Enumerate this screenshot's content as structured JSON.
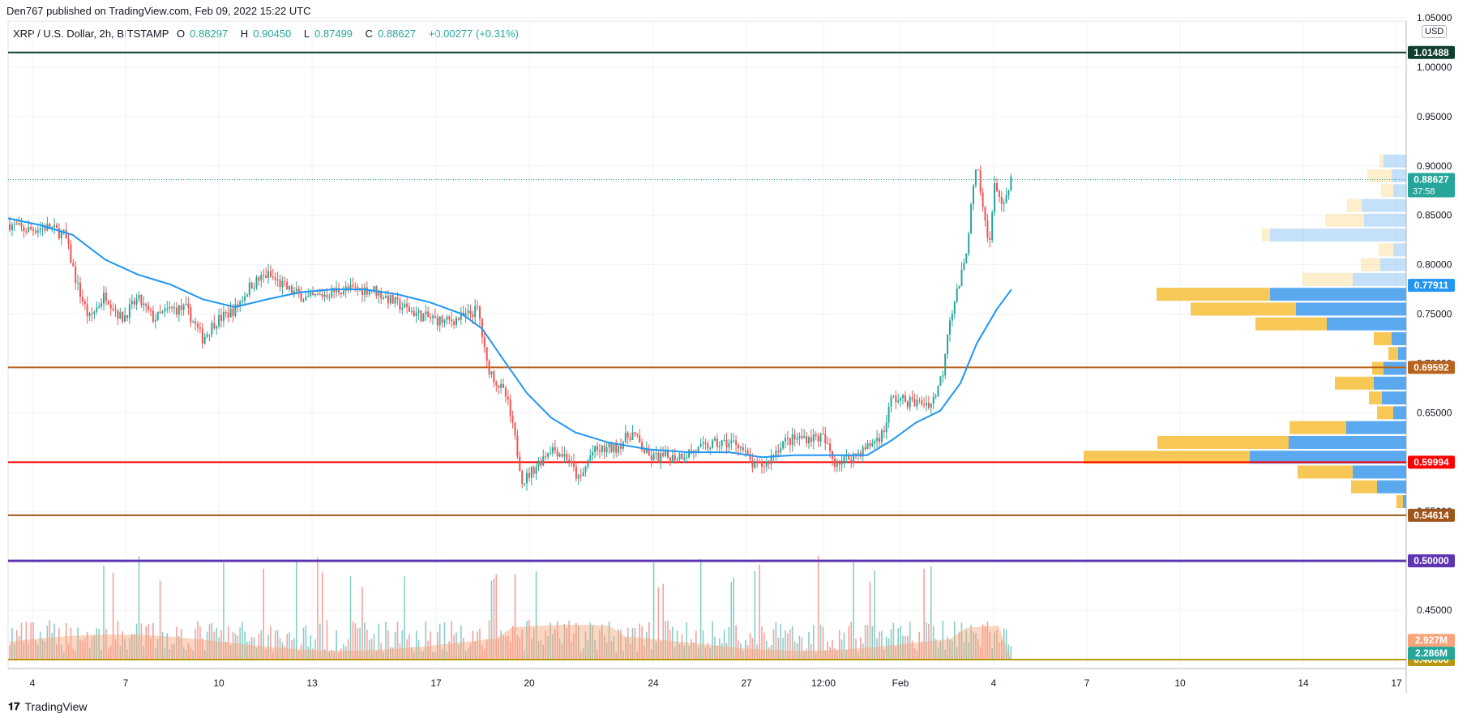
{
  "header": {
    "published": "Den767 published on TradingView.com, Feb 09, 2022 15:22 UTC"
  },
  "legend": {
    "symbol": "XRP / U.S. Dollar, 2h, BITSTAMP",
    "open_label": "O",
    "open": "0.88297",
    "high_label": "H",
    "high": "0.90450",
    "low_label": "L",
    "low": "0.87499",
    "close_label": "C",
    "close": "0.88627",
    "change": "+0.00277 (+0.31%)"
  },
  "currency": "USD",
  "footer": {
    "brand": "TradingView"
  },
  "colors": {
    "up": "#26a69a",
    "down": "#ef5350",
    "ma": "#2196f3",
    "vp_up": "#f7c856",
    "vp_down": "#5aa9ef",
    "vol_area": "#f6a57a"
  },
  "chart_data": {
    "type": "candlestick",
    "timeframe": "2h",
    "ylim": [
      0.4,
      1.05
    ],
    "y_ticks": [
      "1.05000",
      "1.00000",
      "0.95000",
      "0.90000",
      "0.85000",
      "0.80000",
      "0.75000",
      "0.70000",
      "0.65000",
      "0.60000",
      "0.55000",
      "0.50000",
      "0.45000",
      "0.40000"
    ],
    "x_ticks": [
      "4",
      "7",
      "10",
      "13",
      "17",
      "20",
      "24",
      "27",
      "12:00",
      "Feb",
      "4",
      "7",
      "10",
      "14",
      "17"
    ],
    "price_path": [
      [
        0,
        0.845
      ],
      [
        30,
        0.835
      ],
      [
        60,
        0.838
      ],
      [
        80,
        0.83
      ],
      [
        95,
        0.78
      ],
      [
        110,
        0.745
      ],
      [
        130,
        0.77
      ],
      [
        150,
        0.745
      ],
      [
        170,
        0.765
      ],
      [
        190,
        0.745
      ],
      [
        210,
        0.755
      ],
      [
        230,
        0.755
      ],
      [
        250,
        0.725
      ],
      [
        265,
        0.742
      ],
      [
        290,
        0.755
      ],
      [
        310,
        0.78
      ],
      [
        330,
        0.79
      ],
      [
        355,
        0.775
      ],
      [
        380,
        0.765
      ],
      [
        420,
        0.775
      ],
      [
        460,
        0.775
      ],
      [
        490,
        0.76
      ],
      [
        520,
        0.748
      ],
      [
        550,
        0.742
      ],
      [
        575,
        0.748
      ],
      [
        590,
        0.755
      ],
      [
        600,
        0.7
      ],
      [
        610,
        0.685
      ],
      [
        625,
        0.665
      ],
      [
        635,
        0.625
      ],
      [
        645,
        0.58
      ],
      [
        660,
        0.595
      ],
      [
        680,
        0.615
      ],
      [
        700,
        0.605
      ],
      [
        715,
        0.58
      ],
      [
        730,
        0.61
      ],
      [
        760,
        0.615
      ],
      [
        780,
        0.63
      ],
      [
        800,
        0.605
      ],
      [
        830,
        0.605
      ],
      [
        860,
        0.612
      ],
      [
        880,
        0.618
      ],
      [
        910,
        0.62
      ],
      [
        930,
        0.595
      ],
      [
        945,
        0.598
      ],
      [
        965,
        0.62
      ],
      [
        990,
        0.625
      ],
      [
        1015,
        0.625
      ],
      [
        1030,
        0.6
      ],
      [
        1050,
        0.605
      ],
      [
        1070,
        0.615
      ],
      [
        1090,
        0.63
      ],
      [
        1100,
        0.665
      ],
      [
        1130,
        0.66
      ],
      [
        1150,
        0.66
      ],
      [
        1163,
        0.69
      ],
      [
        1170,
        0.74
      ],
      [
        1180,
        0.77
      ],
      [
        1190,
        0.8
      ],
      [
        1200,
        0.87
      ],
      [
        1205,
        0.9
      ],
      [
        1212,
        0.86
      ],
      [
        1220,
        0.82
      ],
      [
        1228,
        0.885
      ],
      [
        1238,
        0.855
      ],
      [
        1248,
        0.887
      ]
    ],
    "ma_path": [
      [
        10,
        0.847
      ],
      [
        50,
        0.84
      ],
      [
        90,
        0.83
      ],
      [
        130,
        0.805
      ],
      [
        170,
        0.79
      ],
      [
        210,
        0.78
      ],
      [
        250,
        0.765
      ],
      [
        290,
        0.757
      ],
      [
        330,
        0.765
      ],
      [
        370,
        0.772
      ],
      [
        410,
        0.775
      ],
      [
        450,
        0.775
      ],
      [
        490,
        0.77
      ],
      [
        530,
        0.762
      ],
      [
        570,
        0.75
      ],
      [
        595,
        0.735
      ],
      [
        620,
        0.705
      ],
      [
        650,
        0.67
      ],
      [
        680,
        0.645
      ],
      [
        710,
        0.63
      ],
      [
        750,
        0.62
      ],
      [
        800,
        0.613
      ],
      [
        850,
        0.61
      ],
      [
        900,
        0.61
      ],
      [
        940,
        0.605
      ],
      [
        980,
        0.607
      ],
      [
        1030,
        0.607
      ],
      [
        1070,
        0.607
      ],
      [
        1100,
        0.622
      ],
      [
        1130,
        0.64
      ],
      [
        1160,
        0.652
      ],
      [
        1185,
        0.68
      ],
      [
        1205,
        0.72
      ],
      [
        1230,
        0.755
      ],
      [
        1248,
        0.775
      ]
    ],
    "horizontal_levels": [
      {
        "value": 1.01488,
        "label": "1.01488",
        "color": "#0f3d2e",
        "width": 2
      },
      {
        "value": 0.69592,
        "label": "0.69592",
        "color": "#b8621b",
        "width": 2
      },
      {
        "value": 0.59994,
        "label": "0.59994",
        "color": "#ff0000",
        "width": 2
      },
      {
        "value": 0.54614,
        "label": "0.54614",
        "color": "#a0561a",
        "width": 2
      },
      {
        "value": 0.5,
        "label": "0.50000",
        "color": "#5e35b1",
        "width": 3
      },
      {
        "value": 0.4,
        "label": "0.40000",
        "color": "#b8980f",
        "width": 2
      }
    ],
    "price_labels": [
      {
        "value": 0.88627,
        "label": "0.88627",
        "sublabel": "37:58",
        "color": "#26a69a"
      },
      {
        "value": 0.77911,
        "label": "0.77911",
        "color": "#2196f3"
      },
      {
        "value": 0.4195,
        "label": "2.927M",
        "color": "#f6a57a"
      },
      {
        "value": 0.4065,
        "label": "2.286M",
        "color": "#26a69a"
      }
    ],
    "volume_profile": [
      [
        0.905,
        5,
        28
      ],
      [
        0.89,
        30,
        18
      ],
      [
        0.875,
        15,
        16
      ],
      [
        0.86,
        18,
        55
      ],
      [
        0.845,
        48,
        52
      ],
      [
        0.83,
        10,
        168
      ],
      [
        0.815,
        18,
        16
      ],
      [
        0.8,
        24,
        32
      ],
      [
        0.785,
        62,
        66
      ],
      [
        0.77,
        140,
        168
      ],
      [
        0.755,
        130,
        136
      ],
      [
        0.74,
        88,
        98
      ],
      [
        0.725,
        22,
        18
      ],
      [
        0.71,
        12,
        10
      ],
      [
        0.695,
        14,
        28
      ],
      [
        0.68,
        48,
        40
      ],
      [
        0.665,
        16,
        30
      ],
      [
        0.65,
        20,
        16
      ],
      [
        0.635,
        70,
        74
      ],
      [
        0.62,
        162,
        145
      ],
      [
        0.605,
        205,
        193
      ],
      [
        0.59,
        68,
        66
      ],
      [
        0.575,
        32,
        36
      ],
      [
        0.56,
        8,
        4
      ]
    ]
  }
}
